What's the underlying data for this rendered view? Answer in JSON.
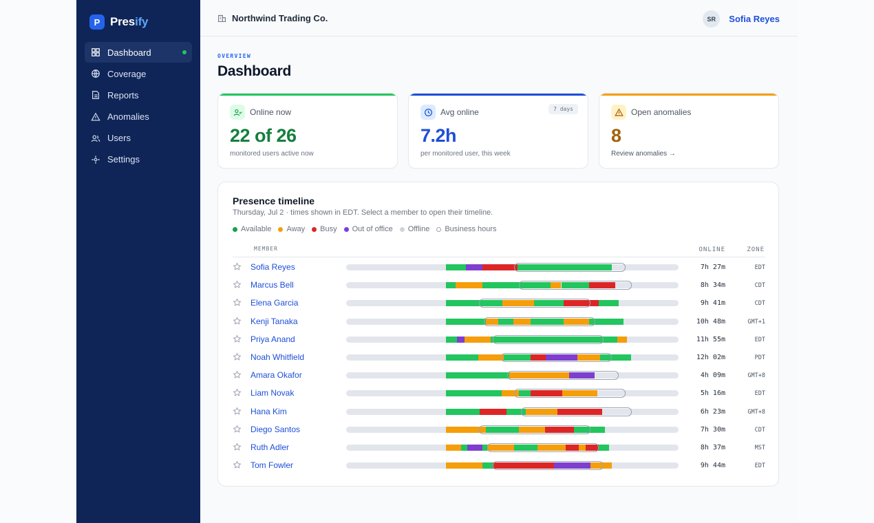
{
  "brand": {
    "mark": "P",
    "name_a": "Pres",
    "name_b": "ify"
  },
  "sidebar": {
    "items": [
      {
        "label": "Dashboard",
        "icon": "grid-icon",
        "active": true
      },
      {
        "label": "Coverage",
        "icon": "globe-icon"
      },
      {
        "label": "Reports",
        "icon": "file-icon"
      },
      {
        "label": "Anomalies",
        "icon": "warning-icon"
      },
      {
        "label": "Users",
        "icon": "users-icon"
      },
      {
        "label": "Settings",
        "icon": "settings-icon"
      }
    ]
  },
  "header": {
    "org": "Northwind Trading Co.",
    "user_initials": "SR",
    "user_name": "Sofia Reyes"
  },
  "page": {
    "eyebrow": "OVERVIEW",
    "title": "Dashboard"
  },
  "stats": [
    {
      "label": "Online now",
      "value": "22 of 26",
      "sub": "monitored users active now",
      "accent": "#22c55e",
      "icon": "user-check-icon"
    },
    {
      "label": "Avg online",
      "value": "7.2h",
      "sub": "per monitored user, this week",
      "badge": "7 days",
      "accent": "#1d4ed8",
      "icon": "clock-icon"
    },
    {
      "label": "Open anomalies",
      "value": "8",
      "sub": "Review anomalies →",
      "accent": "#f59e0b",
      "icon": "warning-icon"
    }
  ],
  "timeline": {
    "title": "Presence timeline",
    "subtitle": "Thursday, Jul 2 · times shown in EDT. Select a member to open their timeline.",
    "legend": [
      {
        "label": "Available",
        "color": "#16a34a"
      },
      {
        "label": "Away",
        "color": "#f59e0b"
      },
      {
        "label": "Busy",
        "color": "#dc2626"
      },
      {
        "label": "Out of office",
        "color": "#7c3aed"
      },
      {
        "label": "Offline",
        "color": "#d1d5db"
      },
      {
        "label": "Business hours",
        "color": "outline"
      }
    ],
    "columns": {
      "member": "MEMBER",
      "online": "ONLINE",
      "zone": "ZONE"
    },
    "colors": {
      "available": "#22c55e",
      "away": "#f59e0b",
      "busy": "#dc2626",
      "ooo": "#7e3fce"
    },
    "rows": [
      {
        "name": "Sofia Reyes",
        "online": "7h 27m",
        "zone": "EDT",
        "bh": [
          0.505,
          0.84
        ],
        "segs": [
          [
            0.3,
            0.36,
            "available"
          ],
          [
            0.36,
            0.41,
            "ooo"
          ],
          [
            0.41,
            0.515,
            "busy"
          ],
          [
            0.515,
            0.8,
            "available"
          ]
        ]
      },
      {
        "name": "Marcus Bell",
        "online": "8h 34m",
        "zone": "CDT",
        "bh": [
          0.52,
          0.86
        ],
        "segs": [
          [
            0.3,
            0.33,
            "available"
          ],
          [
            0.33,
            0.41,
            "away"
          ],
          [
            0.41,
            0.615,
            "available"
          ],
          [
            0.615,
            0.647,
            "away"
          ],
          [
            0.647,
            0.73,
            "available"
          ],
          [
            0.73,
            0.81,
            "busy"
          ]
        ]
      },
      {
        "name": "Elena Garcia",
        "online": "9h 41m",
        "zone": "CDT",
        "bh": [
          0.4,
          0.735
        ],
        "segs": [
          [
            0.3,
            0.47,
            "available"
          ],
          [
            0.47,
            0.565,
            "away"
          ],
          [
            0.565,
            0.655,
            "available"
          ],
          [
            0.655,
            0.76,
            "busy"
          ],
          [
            0.76,
            0.82,
            "available"
          ]
        ]
      },
      {
        "name": "Kenji Tanaka",
        "online": "10h 48m",
        "zone": "GMT+1",
        "bh": [
          0.415,
          0.75
        ],
        "segs": [
          [
            0.3,
            0.42,
            "available"
          ],
          [
            0.42,
            0.458,
            "away"
          ],
          [
            0.458,
            0.503,
            "available"
          ],
          [
            0.503,
            0.555,
            "away"
          ],
          [
            0.555,
            0.655,
            "available"
          ],
          [
            0.655,
            0.73,
            "away"
          ],
          [
            0.73,
            0.835,
            "available"
          ]
        ]
      },
      {
        "name": "Priya Anand",
        "online": "11h 55m",
        "zone": "EDT",
        "bh": [
          0.44,
          0.775
        ],
        "segs": [
          [
            0.3,
            0.333,
            "available"
          ],
          [
            0.333,
            0.356,
            "ooo"
          ],
          [
            0.356,
            0.435,
            "away"
          ],
          [
            0.435,
            0.815,
            "available"
          ],
          [
            0.815,
            0.845,
            "away"
          ]
        ]
      },
      {
        "name": "Noah Whitfield",
        "online": "12h 02m",
        "zone": "PDT",
        "bh": [
          0.465,
          0.8
        ],
        "segs": [
          [
            0.3,
            0.398,
            "available"
          ],
          [
            0.398,
            0.475,
            "away"
          ],
          [
            0.475,
            0.555,
            "available"
          ],
          [
            0.555,
            0.6,
            "busy"
          ],
          [
            0.6,
            0.695,
            "ooo"
          ],
          [
            0.695,
            0.765,
            "away"
          ],
          [
            0.765,
            0.858,
            "available"
          ]
        ]
      },
      {
        "name": "Amara Okafor",
        "online": "4h 09m",
        "zone": "GMT+8",
        "bh": [
          0.485,
          0.82
        ],
        "segs": [
          [
            0.3,
            0.49,
            "available"
          ],
          [
            0.49,
            0.67,
            "away"
          ],
          [
            0.67,
            0.748,
            "ooo"
          ]
        ]
      },
      {
        "name": "Liam Novak",
        "online": "5h 16m",
        "zone": "EDT",
        "bh": [
          0.505,
          0.84
        ],
        "segs": [
          [
            0.3,
            0.468,
            "available"
          ],
          [
            0.468,
            0.52,
            "away"
          ],
          [
            0.52,
            0.555,
            "available"
          ],
          [
            0.555,
            0.65,
            "busy"
          ],
          [
            0.65,
            0.755,
            "away"
          ]
        ]
      },
      {
        "name": "Hana Kim",
        "online": "6h 23m",
        "zone": "GMT+8",
        "bh": [
          0.525,
          0.86
        ],
        "segs": [
          [
            0.3,
            0.402,
            "available"
          ],
          [
            0.402,
            0.482,
            "busy"
          ],
          [
            0.482,
            0.54,
            "available"
          ],
          [
            0.54,
            0.635,
            "away"
          ],
          [
            0.635,
            0.77,
            "busy"
          ]
        ]
      },
      {
        "name": "Diego Santos",
        "online": "7h 30m",
        "zone": "CDT",
        "bh": [
          0.4,
          0.735
        ],
        "segs": [
          [
            0.3,
            0.42,
            "away"
          ],
          [
            0.42,
            0.52,
            "available"
          ],
          [
            0.52,
            0.598,
            "away"
          ],
          [
            0.598,
            0.685,
            "busy"
          ],
          [
            0.685,
            0.778,
            "available"
          ]
        ]
      },
      {
        "name": "Ruth Adler",
        "online": "8h 37m",
        "zone": "MST",
        "bh": [
          0.425,
          0.76
        ],
        "segs": [
          [
            0.3,
            0.345,
            "away"
          ],
          [
            0.345,
            0.365,
            "available"
          ],
          [
            0.365,
            0.41,
            "ooo"
          ],
          [
            0.41,
            0.425,
            "available"
          ],
          [
            0.425,
            0.505,
            "away"
          ],
          [
            0.505,
            0.575,
            "available"
          ],
          [
            0.575,
            0.66,
            "away"
          ],
          [
            0.66,
            0.7,
            "busy"
          ],
          [
            0.7,
            0.72,
            "away"
          ],
          [
            0.72,
            0.76,
            "busy"
          ],
          [
            0.76,
            0.79,
            "available"
          ]
        ]
      },
      {
        "name": "Tom Fowler",
        "online": "9h 44m",
        "zone": "EDT",
        "bh": [
          0.44,
          0.775
        ],
        "segs": [
          [
            0.3,
            0.41,
            "away"
          ],
          [
            0.41,
            0.44,
            "available"
          ],
          [
            0.44,
            0.485,
            "busy"
          ],
          [
            0.485,
            0.56,
            "busy"
          ],
          [
            0.56,
            0.625,
            "busy"
          ],
          [
            0.625,
            0.735,
            "ooo"
          ],
          [
            0.735,
            0.8,
            "away"
          ]
        ]
      }
    ]
  }
}
